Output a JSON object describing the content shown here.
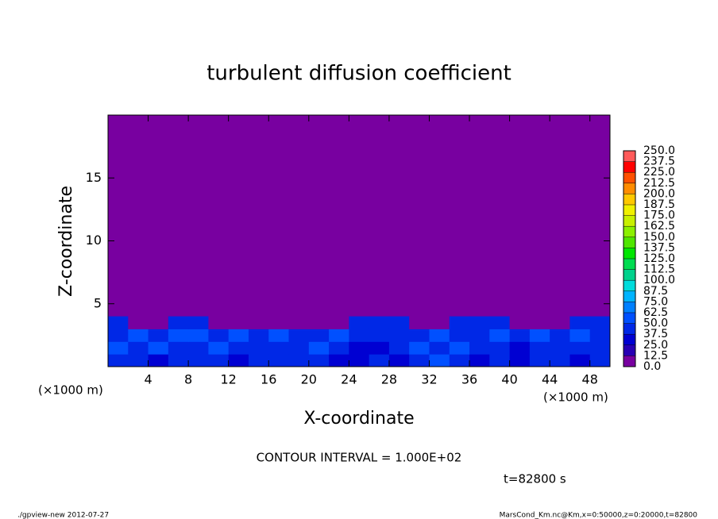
{
  "chart_data": {
    "type": "heatmap",
    "title": "turbulent diffusion coefficient",
    "xlabel": "X-coordinate",
    "ylabel": "Z-coordinate",
    "x_unit_left": "(×1000 m)",
    "x_unit_right": "(×1000 m)",
    "contour_interval": "CONTOUR INTERVAL = 1.000E+02",
    "time_label": "t=82800 s",
    "footer_left": "./gpview-new  2012-07-27",
    "footer_right": "MarsCond_Km.nc@Km,x=0:50000,z=0:20000,t=82800",
    "xlim": [
      0,
      50
    ],
    "ylim": [
      0,
      20
    ],
    "xticks": [
      4,
      8,
      12,
      16,
      20,
      24,
      28,
      32,
      36,
      40,
      44,
      48
    ],
    "yticks": [
      5,
      10,
      15
    ],
    "xbins": [
      0,
      2,
      4,
      6,
      8,
      10,
      12,
      14,
      16,
      18,
      20,
      22,
      24,
      26,
      28,
      30,
      32,
      34,
      36,
      38,
      40,
      42,
      44,
      46,
      48,
      50
    ],
    "zbins": [
      0,
      1,
      2,
      3,
      4
    ],
    "values": [
      [
        45,
        40,
        35,
        40,
        45,
        40,
        35,
        45,
        40,
        45,
        40,
        35,
        30,
        40,
        35,
        45,
        55,
        40,
        35,
        45,
        30,
        40,
        45,
        35,
        40
      ],
      [
        50,
        45,
        55,
        45,
        40,
        50,
        45,
        40,
        45,
        40,
        50,
        45,
        35,
        30,
        40,
        50,
        45,
        55,
        40,
        40,
        35,
        45,
        40,
        45,
        45
      ],
      [
        45,
        50,
        45,
        50,
        55,
        45,
        50,
        45,
        50,
        45,
        45,
        50,
        45,
        40,
        45,
        45,
        50,
        45,
        45,
        50,
        45,
        50,
        45,
        50,
        45
      ],
      [
        40,
        10,
        10,
        40,
        40,
        10,
        10,
        10,
        10,
        10,
        10,
        10,
        45,
        45,
        45,
        10,
        10,
        40,
        40,
        40,
        10,
        10,
        10,
        40,
        40
      ]
    ],
    "levels": [
      {
        "value": 0,
        "label": "0.0"
      },
      {
        "value": 12.5,
        "label": "12.5"
      },
      {
        "value": 25,
        "label": "25.0"
      },
      {
        "value": 37.5,
        "label": "37.5"
      },
      {
        "value": 50,
        "label": "50.0"
      },
      {
        "value": 62.5,
        "label": "62.5"
      },
      {
        "value": 75,
        "label": "75.0"
      },
      {
        "value": 87.5,
        "label": "87.5"
      },
      {
        "value": 100,
        "label": "100.0"
      },
      {
        "value": 112.5,
        "label": "112.5"
      },
      {
        "value": 125,
        "label": "125.0"
      },
      {
        "value": 137.5,
        "label": "137.5"
      },
      {
        "value": 150,
        "label": "150.0"
      },
      {
        "value": 162.5,
        "label": "162.5"
      },
      {
        "value": 175,
        "label": "175.0"
      },
      {
        "value": 187.5,
        "label": "187.5"
      },
      {
        "value": 200,
        "label": "200.0"
      },
      {
        "value": 212.5,
        "label": "212.5"
      },
      {
        "value": 225,
        "label": "225.0"
      },
      {
        "value": 237.5,
        "label": "237.5"
      },
      {
        "value": 250,
        "label": "250.0"
      }
    ],
    "colors": [
      "#7800a0",
      "#2800b4",
      "#0000d2",
      "#0028e6",
      "#0050ff",
      "#0080ff",
      "#00b4ff",
      "#00dcdc",
      "#00d28c",
      "#00dc50",
      "#00e600",
      "#50e600",
      "#8cf000",
      "#c8f000",
      "#f0f000",
      "#ffc800",
      "#ff8c00",
      "#ff5000",
      "#ff0000",
      "#ff5a5a"
    ]
  }
}
